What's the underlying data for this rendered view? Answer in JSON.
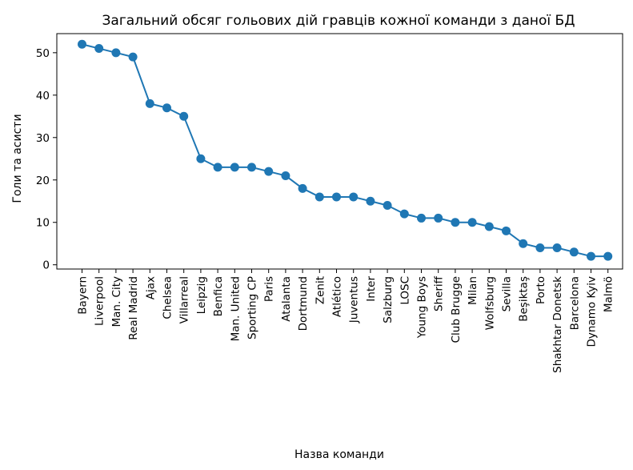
{
  "chart_data": {
    "type": "line",
    "title": "Загальний обсяг гольових дій гравців кожної команди з даної БД",
    "xlabel": "Назва команди",
    "ylabel": "Голи та асисти",
    "ylim": [
      -1,
      54.5
    ],
    "yticks": [
      0,
      10,
      20,
      30,
      40,
      50
    ],
    "grid": false,
    "color": "#1f77b4",
    "categories": [
      "Bayern",
      "Liverpool",
      "Man. City",
      "Real Madrid",
      "Ajax",
      "Chelsea",
      "Villarreal",
      "Leipzig",
      "Benfica",
      "Man. United",
      "Sporting CP",
      "Paris",
      "Atalanta",
      "Dortmund",
      "Zenit",
      "Atlético",
      "Juventus",
      "Inter",
      "Salzburg",
      "LOSC",
      "Young Boys",
      "Sheriff",
      "Club Brugge",
      "Milan",
      "Wolfsburg",
      "Sevilla",
      "Beşiktaş",
      "Porto",
      "Shakhtar Donetsk",
      "Barcelona",
      "Dynamo Kyiv",
      "Malmö"
    ],
    "values": [
      52,
      51,
      50,
      49,
      38,
      37,
      35,
      25,
      23,
      23,
      23,
      22,
      21,
      18,
      16,
      16,
      16,
      15,
      14,
      12,
      11,
      11,
      10,
      10,
      9,
      8,
      5,
      4,
      4,
      3,
      2,
      2
    ]
  }
}
